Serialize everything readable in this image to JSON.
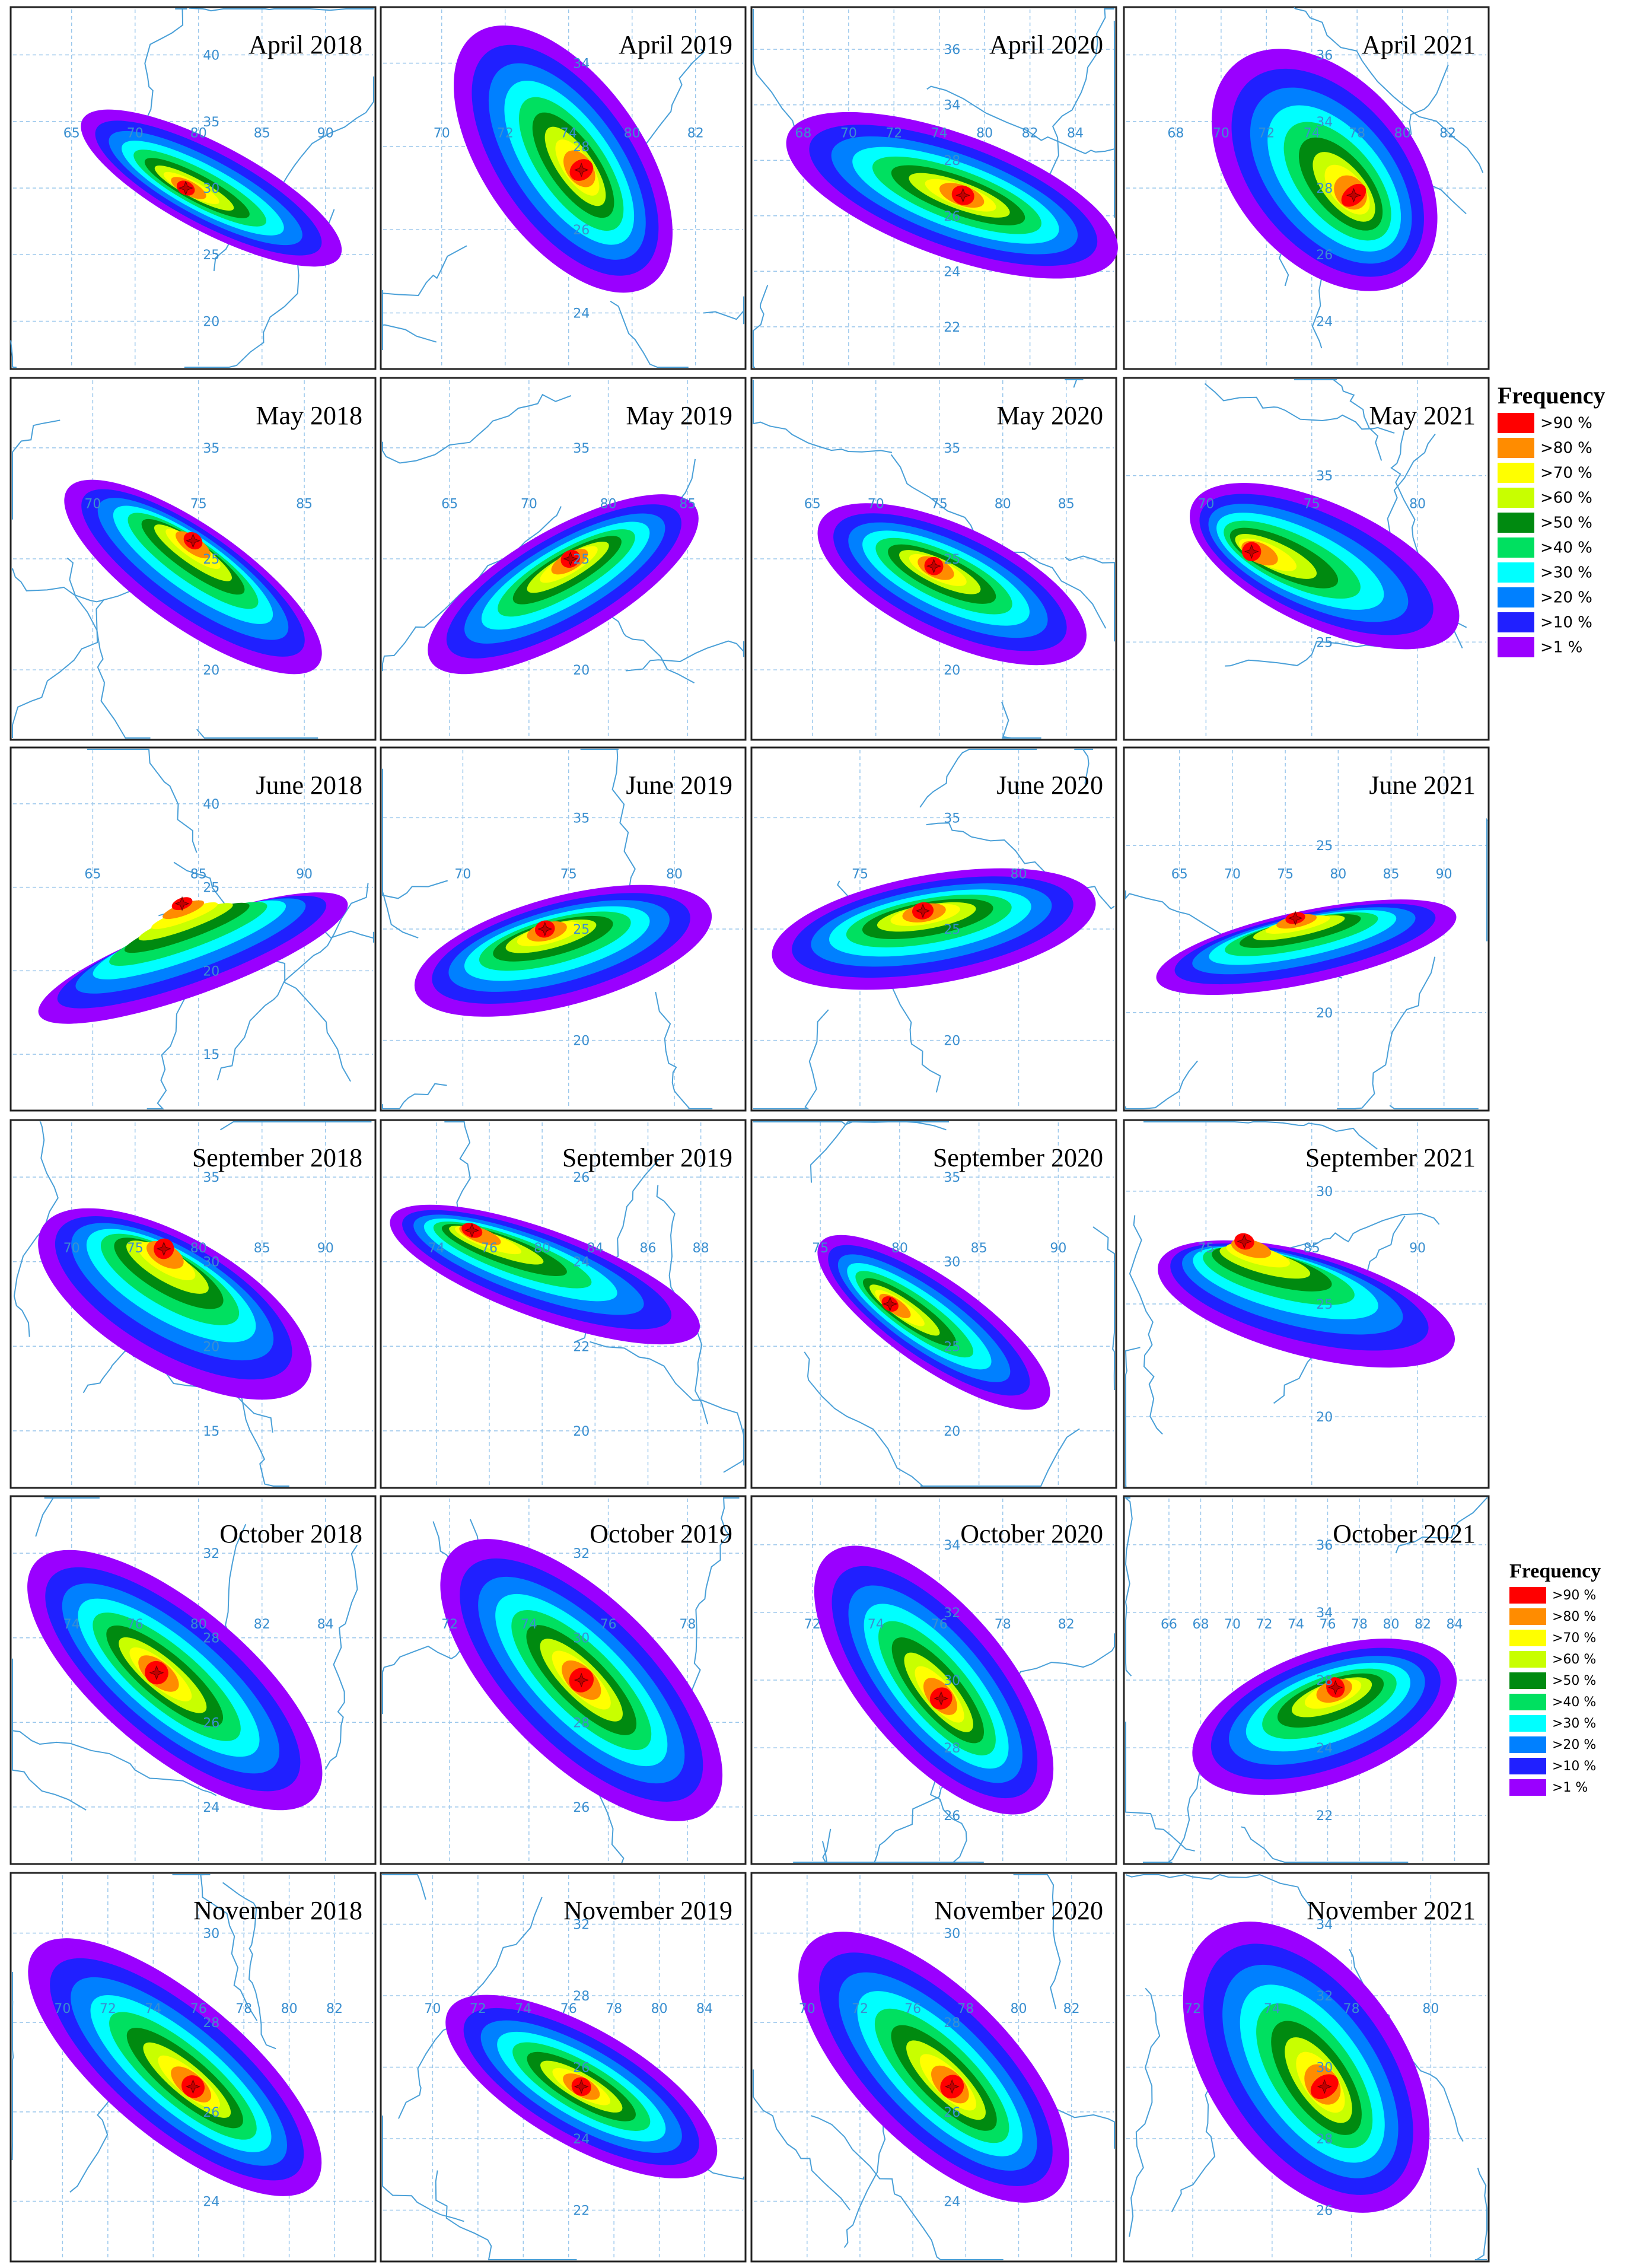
{
  "panels": [
    {
      "title": "April 2018",
      "lon_labels": [
        65,
        70,
        80,
        85,
        90
      ],
      "lat_labels": [
        40,
        35,
        30,
        25,
        20
      ]
    },
    {
      "title": "April 2019",
      "lon_labels": [
        70,
        72,
        74,
        80,
        82
      ],
      "lat_labels": [
        34,
        28,
        26,
        24
      ]
    },
    {
      "title": "April 2020",
      "lon_labels": [
        68,
        70,
        72,
        74,
        80,
        82,
        84
      ],
      "lat_labels": [
        36,
        34,
        28,
        26,
        24,
        22
      ]
    },
    {
      "title": "April 2021",
      "lon_labels": [
        68,
        70,
        72,
        74,
        78,
        80,
        82
      ],
      "lat_labels": [
        36,
        34,
        28,
        26,
        24
      ]
    },
    {
      "title": "May 2018",
      "lon_labels": [
        70,
        75,
        85
      ],
      "lat_labels": [
        35,
        25,
        20
      ]
    },
    {
      "title": "May 2019",
      "lon_labels": [
        65,
        70,
        80,
        85
      ],
      "lat_labels": [
        35,
        25,
        20
      ]
    },
    {
      "title": "May 2020",
      "lon_labels": [
        65,
        70,
        75,
        80,
        85
      ],
      "lat_labels": [
        35,
        25,
        20
      ]
    },
    {
      "title": "May 2021",
      "lon_labels": [
        70,
        75,
        80
      ],
      "lat_labels": [
        35,
        25
      ]
    },
    {
      "title": "June 2018",
      "lon_labels": [
        65,
        85,
        90
      ],
      "lat_labels": [
        40,
        25,
        20,
        15
      ]
    },
    {
      "title": "June 2019",
      "lon_labels": [
        70,
        75,
        80
      ],
      "lat_labels": [
        35,
        25,
        20
      ]
    },
    {
      "title": "June 2020",
      "lon_labels": [
        75,
        80
      ],
      "lat_labels": [
        35,
        25,
        20
      ]
    },
    {
      "title": "June 2021",
      "lon_labels": [
        65,
        70,
        75,
        80,
        85,
        90
      ],
      "lat_labels": [
        25,
        20
      ]
    },
    {
      "title": "September 2018",
      "lon_labels": [
        70,
        75,
        80,
        85,
        90
      ],
      "lat_labels": [
        35,
        30,
        20,
        15
      ]
    },
    {
      "title": "September 2019",
      "lon_labels": [
        74,
        76,
        80,
        84,
        86,
        88
      ],
      "lat_labels": [
        26,
        24,
        22,
        20
      ]
    },
    {
      "title": "September 2020",
      "lon_labels": [
        75,
        80,
        85,
        90
      ],
      "lat_labels": [
        35,
        30,
        25,
        20
      ]
    },
    {
      "title": "September 2021",
      "lon_labels": [
        75,
        85,
        90
      ],
      "lat_labels": [
        30,
        25,
        20
      ]
    },
    {
      "title": "October 2018",
      "lon_labels": [
        74,
        76,
        80,
        82,
        84
      ],
      "lat_labels": [
        32,
        28,
        26,
        24
      ]
    },
    {
      "title": "October 2019",
      "lon_labels": [
        72,
        74,
        76,
        78
      ],
      "lat_labels": [
        32,
        30,
        28,
        26
      ]
    },
    {
      "title": "October 2020",
      "lon_labels": [
        72,
        74,
        76,
        78,
        82
      ],
      "lat_labels": [
        34,
        32,
        30,
        28,
        26
      ]
    },
    {
      "title": "October 2021",
      "lon_labels": [
        66,
        68,
        70,
        72,
        74,
        76,
        78,
        80,
        82,
        84
      ],
      "lat_labels": [
        36,
        34,
        28,
        24,
        22
      ]
    },
    {
      "title": "November 2018",
      "lon_labels": [
        70,
        72,
        74,
        76,
        78,
        80,
        82
      ],
      "lat_labels": [
        30,
        28,
        26,
        24
      ]
    },
    {
      "title": "November 2019",
      "lon_labels": [
        70,
        72,
        74,
        76,
        78,
        80,
        84
      ],
      "lat_labels": [
        32,
        28,
        26,
        24,
        22
      ]
    },
    {
      "title": "November 2020",
      "lon_labels": [
        70,
        72,
        76,
        78,
        80,
        82
      ],
      "lat_labels": [
        30,
        28,
        26,
        24
      ]
    },
    {
      "title": "November 2021",
      "lon_labels": [
        72,
        74,
        78,
        80
      ],
      "lat_labels": [
        34,
        32,
        30,
        28,
        26
      ]
    }
  ],
  "legends": [
    {
      "title": "Frequency",
      "labels": [
        ">90 %",
        ">80 %",
        ">70 %",
        ">60 %",
        ">50 %",
        ">40 %",
        ">30 %",
        ">20 %",
        ">10 %",
        ">1 %"
      ]
    },
    {
      "title": "Frequency",
      "labels": [
        ">90 %",
        ">80 %",
        ">70 %",
        ">60 %",
        ">50 %",
        ">40 %",
        ">30 %",
        ">20 %",
        ">10 %",
        ">1 %"
      ]
    }
  ],
  "colors": [
    "#ff0000",
    "#ff8c00",
    "#ffff00",
    "#c8ff00",
    "#008a10",
    "#00e060",
    "#00ffff",
    "#0080ff",
    "#2020ff",
    "#9a00ff"
  ]
}
